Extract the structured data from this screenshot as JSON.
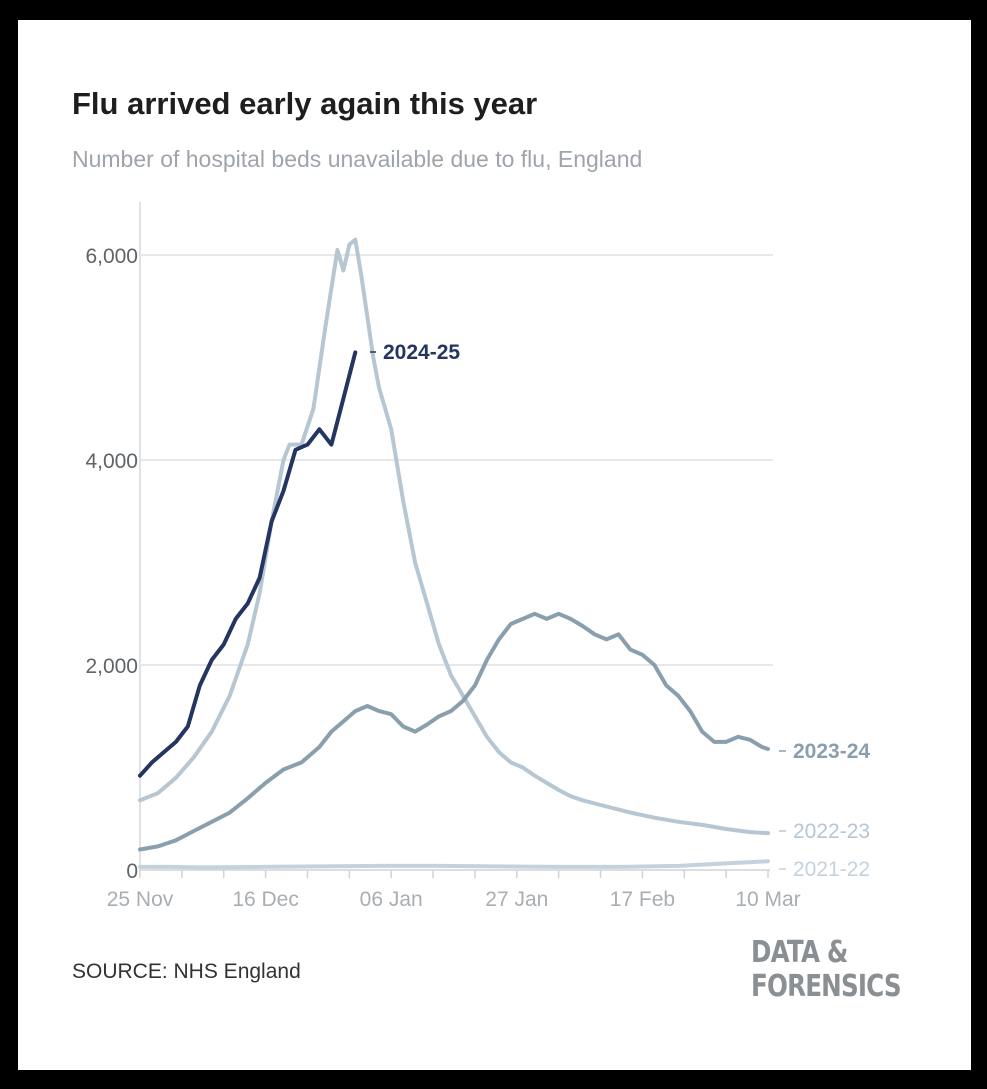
{
  "title": "Flu arrived early again this year",
  "subtitle": "Number of hospital beds unavailable due to flu, England",
  "source": "SOURCE: NHS England",
  "brand": {
    "line1": "DATA &",
    "line2": "FORENSICS"
  },
  "chart_data": {
    "type": "line",
    "title": "Flu arrived early again this year",
    "subtitle": "Number of hospital beds unavailable due to flu, England",
    "xlabel": "",
    "ylabel": "",
    "x_start": "25 Nov",
    "x_ticks": [
      "25 Nov",
      "16 Dec",
      "06 Jan",
      "27 Jan",
      "17 Feb",
      "10 Mar"
    ],
    "x_tick_days": [
      0,
      21,
      42,
      63,
      84,
      105
    ],
    "y_ticks": [
      0,
      2000,
      4000,
      6000
    ],
    "y_tick_labels": [
      "0",
      "2,000",
      "4,000",
      "6,000"
    ],
    "ylim": [
      0,
      6500
    ],
    "grid": true,
    "legend": "direct labels at line ends",
    "series": [
      {
        "name": "2021-22",
        "color": "#c4d2dc",
        "points": [
          [
            0,
            30
          ],
          [
            5,
            30
          ],
          [
            10,
            25
          ],
          [
            20,
            30
          ],
          [
            30,
            35
          ],
          [
            40,
            40
          ],
          [
            50,
            40
          ],
          [
            60,
            35
          ],
          [
            70,
            30
          ],
          [
            80,
            30
          ],
          [
            90,
            40
          ],
          [
            100,
            70
          ],
          [
            105,
            85
          ]
        ]
      },
      {
        "name": "2022-23",
        "color": "#b6c6d2",
        "points": [
          [
            0,
            680
          ],
          [
            3,
            750
          ],
          [
            6,
            900
          ],
          [
            9,
            1100
          ],
          [
            12,
            1350
          ],
          [
            15,
            1700
          ],
          [
            18,
            2200
          ],
          [
            20,
            2700
          ],
          [
            22,
            3400
          ],
          [
            24,
            4000
          ],
          [
            25,
            4150
          ],
          [
            27,
            4150
          ],
          [
            29,
            4500
          ],
          [
            31,
            5300
          ],
          [
            33,
            6050
          ],
          [
            34,
            5850
          ],
          [
            35,
            6100
          ],
          [
            36,
            6150
          ],
          [
            37,
            5800
          ],
          [
            38,
            5400
          ],
          [
            39,
            5000
          ],
          [
            40,
            4700
          ],
          [
            42,
            4300
          ],
          [
            44,
            3600
          ],
          [
            46,
            3000
          ],
          [
            48,
            2600
          ],
          [
            50,
            2200
          ],
          [
            52,
            1900
          ],
          [
            54,
            1700
          ],
          [
            56,
            1500
          ],
          [
            58,
            1300
          ],
          [
            60,
            1150
          ],
          [
            62,
            1050
          ],
          [
            64,
            1000
          ],
          [
            66,
            920
          ],
          [
            68,
            850
          ],
          [
            70,
            780
          ],
          [
            72,
            720
          ],
          [
            74,
            680
          ],
          [
            78,
            620
          ],
          [
            82,
            560
          ],
          [
            86,
            510
          ],
          [
            90,
            470
          ],
          [
            94,
            440
          ],
          [
            98,
            400
          ],
          [
            102,
            370
          ],
          [
            105,
            360
          ]
        ]
      },
      {
        "name": "2023-24",
        "color": "#8a9fae",
        "points": [
          [
            0,
            200
          ],
          [
            3,
            230
          ],
          [
            6,
            290
          ],
          [
            9,
            380
          ],
          [
            12,
            470
          ],
          [
            15,
            560
          ],
          [
            18,
            700
          ],
          [
            21,
            850
          ],
          [
            24,
            980
          ],
          [
            27,
            1050
          ],
          [
            30,
            1200
          ],
          [
            32,
            1350
          ],
          [
            34,
            1450
          ],
          [
            36,
            1550
          ],
          [
            38,
            1600
          ],
          [
            40,
            1550
          ],
          [
            42,
            1520
          ],
          [
            44,
            1400
          ],
          [
            46,
            1350
          ],
          [
            48,
            1420
          ],
          [
            50,
            1500
          ],
          [
            52,
            1550
          ],
          [
            54,
            1650
          ],
          [
            56,
            1800
          ],
          [
            58,
            2050
          ],
          [
            60,
            2250
          ],
          [
            62,
            2400
          ],
          [
            64,
            2450
          ],
          [
            66,
            2500
          ],
          [
            68,
            2450
          ],
          [
            70,
            2500
          ],
          [
            72,
            2450
          ],
          [
            74,
            2380
          ],
          [
            76,
            2300
          ],
          [
            78,
            2250
          ],
          [
            80,
            2300
          ],
          [
            82,
            2150
          ],
          [
            84,
            2100
          ],
          [
            86,
            2000
          ],
          [
            88,
            1800
          ],
          [
            90,
            1700
          ],
          [
            92,
            1550
          ],
          [
            94,
            1350
          ],
          [
            96,
            1250
          ],
          [
            98,
            1250
          ],
          [
            100,
            1300
          ],
          [
            102,
            1270
          ],
          [
            104,
            1200
          ],
          [
            105,
            1180
          ]
        ]
      },
      {
        "name": "2024-25",
        "color": "#233560",
        "points": [
          [
            0,
            920
          ],
          [
            2,
            1050
          ],
          [
            4,
            1150
          ],
          [
            6,
            1250
          ],
          [
            8,
            1400
          ],
          [
            10,
            1800
          ],
          [
            12,
            2050
          ],
          [
            14,
            2200
          ],
          [
            16,
            2450
          ],
          [
            18,
            2600
          ],
          [
            20,
            2850
          ],
          [
            22,
            3400
          ],
          [
            24,
            3700
          ],
          [
            26,
            4100
          ],
          [
            28,
            4150
          ],
          [
            30,
            4300
          ],
          [
            32,
            4150
          ],
          [
            34,
            4600
          ],
          [
            36,
            5050
          ]
        ]
      }
    ]
  }
}
